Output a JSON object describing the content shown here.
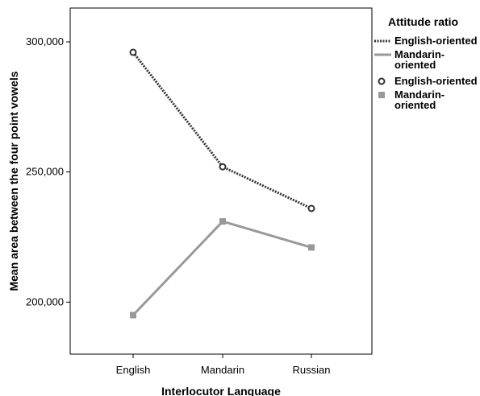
{
  "chart_data": {
    "type": "line",
    "xlabel": "Interlocutor Language",
    "ylabel": "Mean area between the four point vowels",
    "categories": [
      "English",
      "Mandarin",
      "Russian"
    ],
    "ylim": [
      180000,
      313000
    ],
    "yticks": [
      200000,
      250000,
      300000
    ],
    "ytick_labels": [
      "200,000",
      "250,000",
      "300,000"
    ],
    "grid": false,
    "legend": {
      "title": "Attitude ratio",
      "placement": "right",
      "entries": [
        {
          "label": "English-oriented",
          "kind": "line",
          "style": "dotted",
          "color": "#333333"
        },
        {
          "label": "Mandarin-oriented",
          "kind": "line",
          "style": "solid",
          "color": "#999999"
        },
        {
          "label": "English-oriented",
          "kind": "marker",
          "marker": "circle",
          "color": "#333333"
        },
        {
          "label": "Mandarin-oriented",
          "kind": "marker",
          "marker": "square",
          "color": "#999999"
        }
      ]
    },
    "series": [
      {
        "name": "English-oriented",
        "values": [
          296000,
          252000,
          236000
        ],
        "color": "#333333",
        "style": "dotted",
        "marker": "circle"
      },
      {
        "name": "Mandarin-oriented",
        "values": [
          195000,
          231000,
          221000
        ],
        "color": "#999999",
        "style": "solid",
        "marker": "square"
      }
    ]
  }
}
